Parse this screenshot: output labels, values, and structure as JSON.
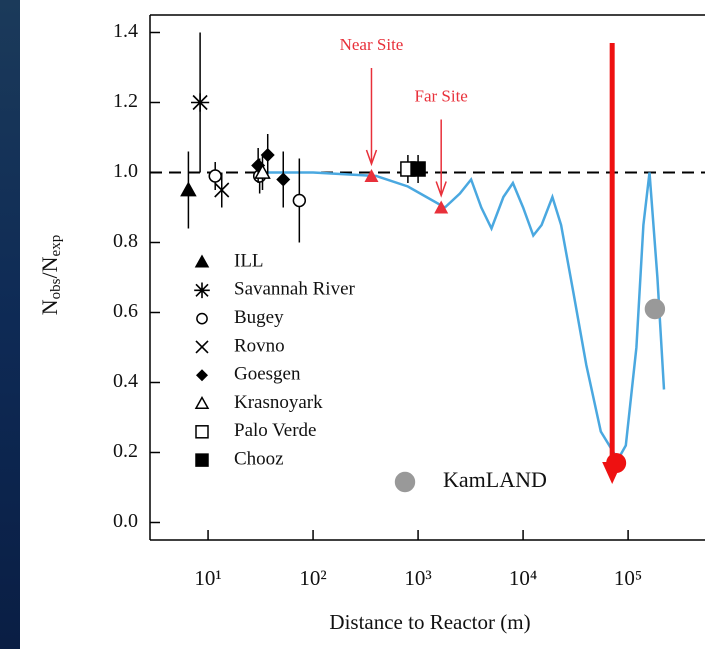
{
  "chart_data": {
    "type": "scatter",
    "log_x": true,
    "x_label": "Distance to Reactor (m)",
    "y_label": "Nobs/Nexp",
    "xlim": [
      2.8,
      540000
    ],
    "ylim": [
      -0.05,
      1.45
    ],
    "xticks": [
      {
        "value": 10,
        "label": "10¹"
      },
      {
        "value": 100,
        "label": "10²"
      },
      {
        "value": 1000,
        "label": "10³"
      },
      {
        "value": 10000,
        "label": "10⁴"
      },
      {
        "value": 100000,
        "label": "10⁵"
      }
    ],
    "yticks": [
      {
        "value": 0,
        "label": "0.0"
      },
      0.2,
      0.4,
      0.6,
      0.8,
      {
        "value": 1,
        "label": "1.0"
      },
      1.2,
      1.4
    ],
    "reference_y": 1,
    "series": [
      {
        "name": "ILL",
        "marker": "triangle-filled",
        "color": "#000000",
        "x": [
          6.5
        ],
        "values": [
          0.95
        ],
        "errors": [
          0.11
        ]
      },
      {
        "name": "Savannah River",
        "marker": "asterisk",
        "color": "#000000",
        "x": [
          8.4
        ],
        "values": [
          1.2
        ],
        "errors": [
          0.2
        ]
      },
      {
        "name": "Bugey",
        "marker": "circle-open",
        "color": "#000000",
        "x": [
          11.7,
          31,
          74
        ],
        "values": [
          0.99,
          0.99,
          0.92
        ],
        "errors": [
          0.04,
          0.05,
          0.12
        ]
      },
      {
        "name": "Rovno",
        "marker": "cross",
        "color": "#000000",
        "x": [
          13.5
        ],
        "values": [
          0.95
        ],
        "errors": [
          0.05
        ]
      },
      {
        "name": "Goesgen",
        "marker": "diamond-filled",
        "color": "#000000",
        "x": [
          30,
          37,
          52
        ],
        "values": [
          1.02,
          1.05,
          0.98
        ],
        "errors": [
          0.05,
          0.06,
          0.08
        ]
      },
      {
        "name": "Krasnoyark",
        "marker": "triangle-open",
        "color": "#000000",
        "x": [
          33
        ],
        "values": [
          1.0
        ],
        "errors": [
          0.05
        ]
      },
      {
        "name": "Palo Verde",
        "marker": "square-open",
        "color": "#000000",
        "x": [
          800
        ],
        "values": [
          1.01
        ],
        "errors": [
          0.04
        ]
      },
      {
        "name": "Chooz",
        "marker": "square-filled",
        "color": "#000000",
        "x": [
          1000
        ],
        "values": [
          1.01
        ],
        "errors": [
          0.04
        ]
      },
      {
        "name": "KamLAND",
        "marker": "circle-filled",
        "color": "#999999",
        "x": [
          180000
        ],
        "values": [
          0.61
        ]
      }
    ],
    "curve": {
      "color": "#4aa8e0",
      "x": [
        30,
        100,
        200,
        400,
        800,
        1200,
        1800,
        2500,
        3200,
        4000,
        5000,
        6500,
        8000,
        10000,
        12500,
        15000,
        19000,
        23000,
        30000,
        40000,
        55000,
        80000,
        95000,
        120000,
        140000,
        160000,
        190000,
        220000
      ],
      "values": [
        1.0,
        1.0,
        0.995,
        0.99,
        0.96,
        0.93,
        0.9,
        0.94,
        0.98,
        0.9,
        0.84,
        0.93,
        0.97,
        0.9,
        0.82,
        0.85,
        0.93,
        0.85,
        0.66,
        0.45,
        0.26,
        0.18,
        0.22,
        0.5,
        0.85,
        1.0,
        0.7,
        0.38
      ]
    },
    "annotations": [
      {
        "text": "Near Site",
        "x": 360,
        "y": 0.99,
        "color": "#e8303a"
      },
      {
        "text": "Far Site",
        "x": 1660,
        "y": 0.9,
        "color": "#e8303a"
      }
    ],
    "highlight": {
      "x": 77000,
      "y": 0.17,
      "arrow_from": 1.37,
      "arrow_to": 0.11,
      "color": "#ee1111"
    }
  }
}
